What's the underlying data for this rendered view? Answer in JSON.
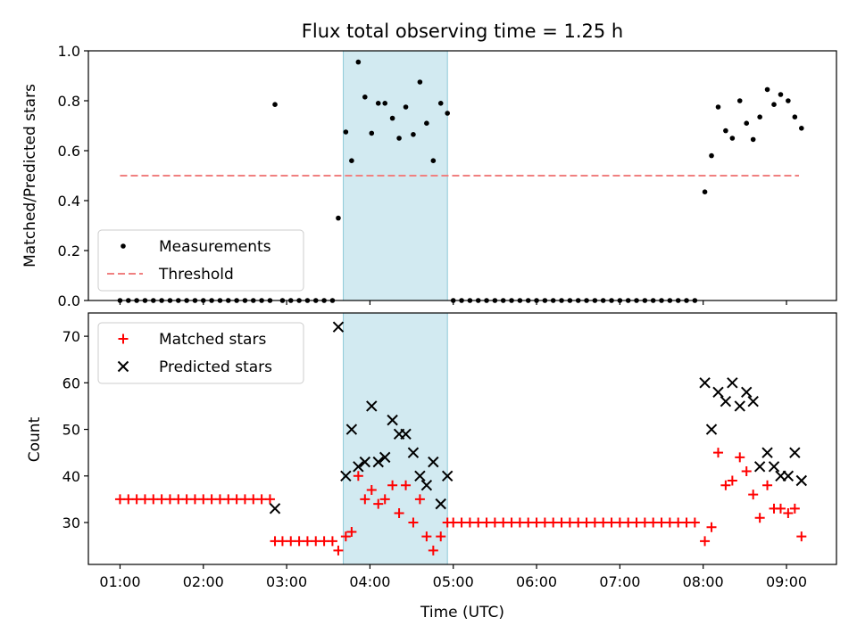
{
  "chart_data": {
    "title": "Flux total observing time = 1.25 h",
    "xlabel": "Time (UTC)",
    "x_ticks": [
      "01:00",
      "02:00",
      "03:00",
      "04:00",
      "05:00",
      "06:00",
      "07:00",
      "08:00",
      "09:00"
    ],
    "x_tick_hours": [
      1,
      2,
      3,
      4,
      5,
      6,
      7,
      8,
      9
    ],
    "xlim_hours": [
      0.62,
      9.6
    ],
    "shaded_region_hours": [
      3.68,
      4.93
    ],
    "shaded_color": "#add8e6",
    "panels": [
      {
        "type": "scatter",
        "ylabel": "Matched/Predicted stars",
        "ylim": [
          0,
          1
        ],
        "y_ticks": [
          "0.0",
          "0.2",
          "0.4",
          "0.6",
          "0.8",
          "1.0"
        ],
        "y_tick_values": [
          0,
          0.2,
          0.4,
          0.6,
          0.8,
          1.0
        ],
        "legend_position": "lower-left",
        "series": [
          {
            "name": "Measurements",
            "marker": "dot",
            "color": "#000000",
            "points": [
              [
                1.0,
                0
              ],
              [
                1.1,
                0
              ],
              [
                1.2,
                0
              ],
              [
                1.3,
                0
              ],
              [
                1.4,
                0
              ],
              [
                1.5,
                0
              ],
              [
                1.6,
                0
              ],
              [
                1.7,
                0
              ],
              [
                1.8,
                0
              ],
              [
                1.9,
                0
              ],
              [
                2.0,
                0
              ],
              [
                2.1,
                0
              ],
              [
                2.2,
                0
              ],
              [
                2.3,
                0
              ],
              [
                2.4,
                0
              ],
              [
                2.5,
                0
              ],
              [
                2.6,
                0
              ],
              [
                2.7,
                0
              ],
              [
                2.8,
                0
              ],
              [
                2.86,
                0.785
              ],
              [
                2.95,
                0
              ],
              [
                3.05,
                0
              ],
              [
                3.15,
                0
              ],
              [
                3.25,
                0
              ],
              [
                3.35,
                0
              ],
              [
                3.45,
                0
              ],
              [
                3.55,
                0
              ],
              [
                3.62,
                0.33
              ],
              [
                3.71,
                0.675
              ],
              [
                3.78,
                0.56
              ],
              [
                3.86,
                0.955
              ],
              [
                3.94,
                0.815
              ],
              [
                4.02,
                0.67
              ],
              [
                4.1,
                0.79
              ],
              [
                4.18,
                0.79
              ],
              [
                4.27,
                0.73
              ],
              [
                4.35,
                0.65
              ],
              [
                4.43,
                0.775
              ],
              [
                4.52,
                0.665
              ],
              [
                4.6,
                0.875
              ],
              [
                4.68,
                0.71
              ],
              [
                4.76,
                0.56
              ],
              [
                4.85,
                0.79
              ],
              [
                4.93,
                0.75
              ],
              [
                5.0,
                0
              ],
              [
                5.1,
                0
              ],
              [
                5.2,
                0
              ],
              [
                5.3,
                0
              ],
              [
                5.4,
                0
              ],
              [
                5.5,
                0
              ],
              [
                5.6,
                0
              ],
              [
                5.7,
                0
              ],
              [
                5.8,
                0
              ],
              [
                5.9,
                0
              ],
              [
                6.0,
                0
              ],
              [
                6.1,
                0
              ],
              [
                6.2,
                0
              ],
              [
                6.3,
                0
              ],
              [
                6.4,
                0
              ],
              [
                6.5,
                0
              ],
              [
                6.6,
                0
              ],
              [
                6.7,
                0
              ],
              [
                6.8,
                0
              ],
              [
                6.9,
                0
              ],
              [
                7.0,
                0
              ],
              [
                7.1,
                0
              ],
              [
                7.2,
                0
              ],
              [
                7.3,
                0
              ],
              [
                7.4,
                0
              ],
              [
                7.5,
                0
              ],
              [
                7.6,
                0
              ],
              [
                7.7,
                0
              ],
              [
                7.8,
                0
              ],
              [
                7.9,
                0
              ],
              [
                8.02,
                0.435
              ],
              [
                8.1,
                0.58
              ],
              [
                8.18,
                0.775
              ],
              [
                8.27,
                0.68
              ],
              [
                8.35,
                0.65
              ],
              [
                8.44,
                0.8
              ],
              [
                8.52,
                0.71
              ],
              [
                8.6,
                0.645
              ],
              [
                8.68,
                0.735
              ],
              [
                8.77,
                0.845
              ],
              [
                8.85,
                0.785
              ],
              [
                8.93,
                0.825
              ],
              [
                9.02,
                0.8
              ],
              [
                9.1,
                0.735
              ],
              [
                9.18,
                0.69
              ]
            ]
          },
          {
            "name": "Threshold",
            "marker": "dashed-line",
            "color": "#f08080",
            "points": [
              [
                1.0,
                0.5
              ],
              [
                9.15,
                0.5
              ]
            ]
          }
        ]
      },
      {
        "type": "scatter",
        "ylabel": "Count",
        "ylim": [
          21,
          75
        ],
        "y_ticks": [
          "30",
          "40",
          "50",
          "60",
          "70"
        ],
        "y_tick_values": [
          30,
          40,
          50,
          60,
          70
        ],
        "legend_position": "upper-left",
        "series": [
          {
            "name": "Matched stars",
            "marker": "plus",
            "color": "#ff0000",
            "points": [
              [
                1.0,
                35
              ],
              [
                1.1,
                35
              ],
              [
                1.2,
                35
              ],
              [
                1.3,
                35
              ],
              [
                1.4,
                35
              ],
              [
                1.5,
                35
              ],
              [
                1.6,
                35
              ],
              [
                1.7,
                35
              ],
              [
                1.8,
                35
              ],
              [
                1.9,
                35
              ],
              [
                2.0,
                35
              ],
              [
                2.1,
                35
              ],
              [
                2.2,
                35
              ],
              [
                2.3,
                35
              ],
              [
                2.4,
                35
              ],
              [
                2.5,
                35
              ],
              [
                2.6,
                35
              ],
              [
                2.7,
                35
              ],
              [
                2.8,
                35
              ],
              [
                2.86,
                26
              ],
              [
                2.95,
                26
              ],
              [
                3.05,
                26
              ],
              [
                3.15,
                26
              ],
              [
                3.25,
                26
              ],
              [
                3.35,
                26
              ],
              [
                3.45,
                26
              ],
              [
                3.55,
                26
              ],
              [
                3.62,
                24
              ],
              [
                3.71,
                27
              ],
              [
                3.78,
                28
              ],
              [
                3.86,
                40
              ],
              [
                3.94,
                35
              ],
              [
                4.02,
                37
              ],
              [
                4.1,
                34
              ],
              [
                4.18,
                35
              ],
              [
                4.27,
                38
              ],
              [
                4.35,
                32
              ],
              [
                4.43,
                38
              ],
              [
                4.52,
                30
              ],
              [
                4.6,
                35
              ],
              [
                4.68,
                27
              ],
              [
                4.76,
                24
              ],
              [
                4.85,
                27
              ],
              [
                4.93,
                30
              ],
              [
                5.0,
                30
              ],
              [
                5.1,
                30
              ],
              [
                5.2,
                30
              ],
              [
                5.3,
                30
              ],
              [
                5.4,
                30
              ],
              [
                5.5,
                30
              ],
              [
                5.6,
                30
              ],
              [
                5.7,
                30
              ],
              [
                5.8,
                30
              ],
              [
                5.9,
                30
              ],
              [
                6.0,
                30
              ],
              [
                6.1,
                30
              ],
              [
                6.2,
                30
              ],
              [
                6.3,
                30
              ],
              [
                6.4,
                30
              ],
              [
                6.5,
                30
              ],
              [
                6.6,
                30
              ],
              [
                6.7,
                30
              ],
              [
                6.8,
                30
              ],
              [
                6.9,
                30
              ],
              [
                7.0,
                30
              ],
              [
                7.1,
                30
              ],
              [
                7.2,
                30
              ],
              [
                7.3,
                30
              ],
              [
                7.4,
                30
              ],
              [
                7.5,
                30
              ],
              [
                7.6,
                30
              ],
              [
                7.7,
                30
              ],
              [
                7.8,
                30
              ],
              [
                7.9,
                30
              ],
              [
                8.02,
                26
              ],
              [
                8.1,
                29
              ],
              [
                8.18,
                45
              ],
              [
                8.27,
                38
              ],
              [
                8.35,
                39
              ],
              [
                8.44,
                44
              ],
              [
                8.52,
                41
              ],
              [
                8.6,
                36
              ],
              [
                8.68,
                31
              ],
              [
                8.77,
                38
              ],
              [
                8.85,
                33
              ],
              [
                8.93,
                33
              ],
              [
                9.02,
                32
              ],
              [
                9.1,
                33
              ],
              [
                9.18,
                27
              ]
            ]
          },
          {
            "name": "Predicted stars",
            "marker": "x",
            "color": "#000000",
            "points": [
              [
                2.86,
                33
              ],
              [
                3.62,
                72
              ],
              [
                3.71,
                40
              ],
              [
                3.78,
                50
              ],
              [
                3.86,
                42
              ],
              [
                3.94,
                43
              ],
              [
                4.02,
                55
              ],
              [
                4.1,
                43
              ],
              [
                4.18,
                44
              ],
              [
                4.27,
                52
              ],
              [
                4.35,
                49
              ],
              [
                4.43,
                49
              ],
              [
                4.52,
                45
              ],
              [
                4.6,
                40
              ],
              [
                4.68,
                38
              ],
              [
                4.76,
                43
              ],
              [
                4.85,
                34
              ],
              [
                4.93,
                40
              ],
              [
                8.02,
                60
              ],
              [
                8.1,
                50
              ],
              [
                8.18,
                58
              ],
              [
                8.27,
                56
              ],
              [
                8.35,
                60
              ],
              [
                8.44,
                55
              ],
              [
                8.52,
                58
              ],
              [
                8.6,
                56
              ],
              [
                8.68,
                42
              ],
              [
                8.77,
                45
              ],
              [
                8.85,
                42
              ],
              [
                8.93,
                40
              ],
              [
                9.02,
                40
              ],
              [
                9.1,
                45
              ],
              [
                9.18,
                39
              ]
            ]
          }
        ]
      }
    ]
  }
}
